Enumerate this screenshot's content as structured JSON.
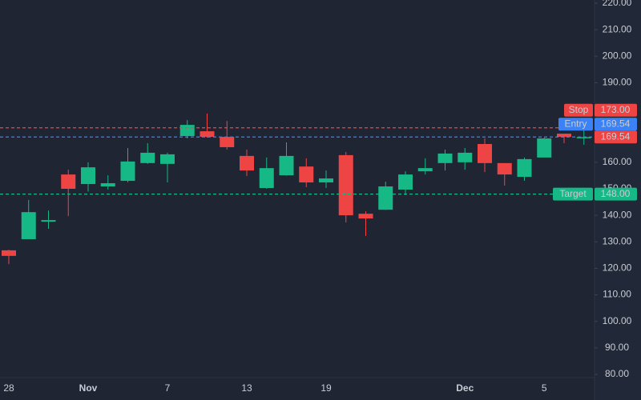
{
  "chart_data": {
    "type": "candlestick",
    "categories": [
      "28",
      null,
      null,
      null,
      "Nov",
      null,
      null,
      null,
      "7",
      null,
      null,
      null,
      "13",
      null,
      null,
      null,
      "19",
      null,
      null,
      null,
      null,
      null,
      null,
      "Dec",
      null,
      null,
      null,
      "5",
      null,
      null
    ],
    "open": [
      126.8,
      131,
      137.6,
      155.4,
      151.8,
      150.9,
      153,
      159.7,
      159.4,
      169.9,
      171.7,
      169.6,
      162.4,
      150.3,
      155.1,
      158.4,
      152.4,
      162.7,
      140.6,
      142.1,
      149.7,
      156.6,
      159.7,
      160,
      166.9,
      159.7,
      154.5,
      161.8,
      170.8,
      169.5
    ],
    "high": [
      127,
      145.8,
      141.8,
      157.2,
      160,
      155.1,
      165.4,
      167.2,
      163.6,
      175.9,
      178.4,
      175.6,
      164.8,
      161.8,
      167.5,
      161.5,
      156.9,
      163.9,
      141.5,
      152.7,
      156.6,
      161.5,
      164.8,
      165.4,
      169,
      159.7,
      161.8,
      169.3,
      170.8,
      172
    ],
    "low": [
      121.6,
      131,
      134.9,
      139.7,
      149,
      149.7,
      152.5,
      159.4,
      152.4,
      169,
      169.3,
      164.8,
      154.8,
      150,
      155,
      150.6,
      150.3,
      137.3,
      132.2,
      142,
      147.6,
      155.4,
      156.9,
      157.2,
      156.3,
      151.2,
      153,
      161.8,
      167.2,
      166.6
    ],
    "close": [
      124.7,
      141.2,
      138.2,
      150,
      158.1,
      152.1,
      160.3,
      163.6,
      163,
      174.1,
      169.6,
      165.7,
      156.9,
      157.8,
      162.4,
      152.4,
      153.9,
      140,
      138.8,
      150.9,
      155.4,
      157.8,
      163.3,
      163.6,
      159.7,
      155.4,
      161.2,
      169,
      169.6,
      169.5
    ],
    "up_color": "#16b886",
    "down_color": "#ef4444",
    "ylim": [
      80,
      220
    ],
    "yticks": [
      {
        "value": 80,
        "label": "80.00"
      },
      {
        "value": 90,
        "label": "90.00"
      },
      {
        "value": 100,
        "label": "100.00"
      },
      {
        "value": 110,
        "label": "110.00"
      },
      {
        "value": 120,
        "label": "120.00"
      },
      {
        "value": 130,
        "label": "130.00"
      },
      {
        "value": 140,
        "label": "140.00"
      },
      {
        "value": 150,
        "label": "150.00"
      },
      {
        "value": 160,
        "label": "160.00"
      },
      {
        "value": 170,
        "label": "170.00"
      },
      {
        "value": 180,
        "label": "180.00"
      },
      {
        "value": 190,
        "label": "190.00"
      },
      {
        "value": 200,
        "label": "200.00"
      },
      {
        "value": 210,
        "label": "210.00"
      },
      {
        "value": 220,
        "label": "220.00"
      }
    ],
    "levels": [
      {
        "name": "Stop",
        "value": 173,
        "label": "173.00",
        "color": "#ef4444"
      },
      {
        "name": "Entry",
        "value": 169.54,
        "label": "169.54",
        "color": "#3b82f6"
      },
      {
        "name": "Target",
        "value": 148,
        "label": "148.00",
        "color": "#16b886"
      }
    ],
    "last_price": {
      "value": 169.54,
      "label": "169.54",
      "color": "#ef4444"
    }
  }
}
